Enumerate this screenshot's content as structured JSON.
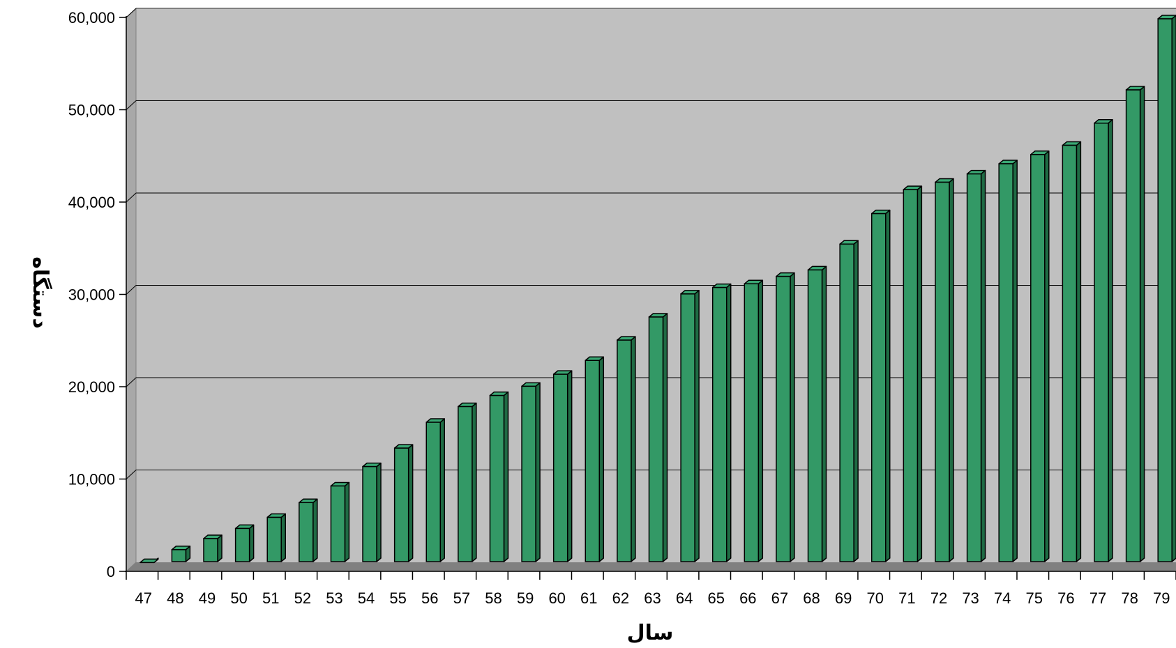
{
  "chart_data": {
    "type": "bar",
    "style": "3d-column",
    "title": "",
    "xlabel": "سال",
    "ylabel": "دستگاه",
    "ylim": [
      0,
      60000
    ],
    "yticks": [
      0,
      10000,
      20000,
      30000,
      40000,
      50000,
      60000
    ],
    "ytick_labels": [
      "0",
      "10,000",
      "20,000",
      "30,000",
      "40,000",
      "50,000",
      "60,000"
    ],
    "grid": true,
    "legend": "none",
    "categories": [
      "47",
      "48",
      "49",
      "50",
      "51",
      "52",
      "53",
      "54",
      "55",
      "56",
      "57",
      "58",
      "59",
      "60",
      "61",
      "62",
      "63",
      "64",
      "65",
      "66",
      "67",
      "68",
      "69",
      "70",
      "71",
      "72",
      "73",
      "74",
      "75",
      "76",
      "77",
      "78",
      "79"
    ],
    "series": [
      {
        "values": [
          1100,
          2500,
          3700,
          4800,
          6000,
          7600,
          9400,
          11500,
          13500,
          16300,
          18000,
          19200,
          20200,
          21500,
          23000,
          25200,
          27700,
          30200,
          30900,
          31300,
          32100,
          32800,
          35600,
          38900,
          41500,
          42300,
          43200,
          44300,
          45300,
          46300,
          48700,
          52300,
          60000
        ]
      }
    ],
    "colors": {
      "bar_front": "#339966",
      "bar_side": "#1f6b44",
      "bar_top": "#3aa874",
      "bar_outline": "#000000",
      "plot_wall": "#c0c0c0",
      "plot_floor": "#808080",
      "gridline": "#000000"
    }
  }
}
